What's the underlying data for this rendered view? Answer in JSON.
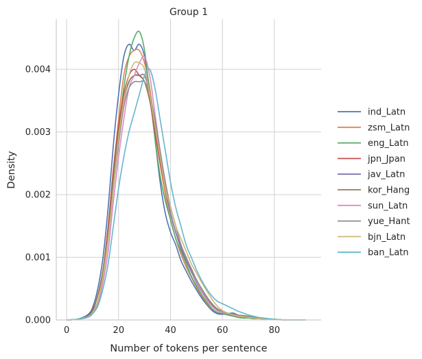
{
  "chart_data": {
    "type": "line",
    "title": "Group 1",
    "xlabel": "Number of tokens per sentence",
    "ylabel": "Density",
    "xlim": [
      -4,
      98
    ],
    "ylim": [
      0,
      0.0048
    ],
    "xticks": [
      0,
      20,
      40,
      60,
      80
    ],
    "yticks": [
      0.0,
      0.001,
      0.002,
      0.003,
      0.004
    ],
    "ytick_labels": [
      "0.000",
      "0.001",
      "0.002",
      "0.003",
      "0.004"
    ],
    "grid": true,
    "legend_position": "right",
    "x": [
      0,
      4,
      8,
      10,
      12,
      14,
      16,
      18,
      20,
      22,
      24,
      26,
      28,
      30,
      32,
      34,
      36,
      38,
      40,
      42,
      44,
      46,
      48,
      50,
      52,
      54,
      56,
      58,
      60,
      62,
      64,
      66,
      68,
      70,
      72,
      74,
      76,
      78,
      80,
      84,
      88,
      92
    ],
    "series": [
      {
        "name": "ind_Latn",
        "color": "#4c72b0",
        "values": [
          0,
          1e-05,
          8e-05,
          0.0002,
          0.0005,
          0.001,
          0.0018,
          0.0028,
          0.0036,
          0.0042,
          0.0044,
          0.0043,
          0.0044,
          0.0042,
          0.0036,
          0.0029,
          0.0022,
          0.0017,
          0.0014,
          0.0012,
          0.00095,
          0.00078,
          0.00062,
          0.00048,
          0.00035,
          0.00024,
          0.00015,
          0.0001,
          9e-05,
          0.0001,
          0.00011,
          8e-05,
          5e-05,
          4e-05,
          4e-05,
          3e-05,
          2e-05,
          1e-05,
          1e-05,
          0,
          0,
          0
        ]
      },
      {
        "name": "zsm_Latn",
        "color": "#dd8452",
        "values": [
          0,
          1e-05,
          6e-05,
          0.00015,
          0.0004,
          0.0008,
          0.0015,
          0.0024,
          0.0032,
          0.0039,
          0.0042,
          0.0043,
          0.0043,
          0.0041,
          0.0037,
          0.0031,
          0.0025,
          0.002,
          0.0016,
          0.0013,
          0.00105,
          0.00085,
          0.00068,
          0.00052,
          0.00038,
          0.00026,
          0.00017,
          0.00012,
          0.0001,
          9e-05,
          8e-05,
          6e-05,
          5e-05,
          4e-05,
          3e-05,
          2e-05,
          2e-05,
          1e-05,
          1e-05,
          0,
          0,
          0
        ]
      },
      {
        "name": "eng_Latn",
        "color": "#55a868",
        "values": [
          0,
          1e-05,
          5e-05,
          0.00013,
          0.0003,
          0.0007,
          0.0013,
          0.0022,
          0.003,
          0.0037,
          0.0042,
          0.0045,
          0.0046,
          0.0043,
          0.0036,
          0.0029,
          0.0023,
          0.0019,
          0.0016,
          0.0013,
          0.0011,
          0.0009,
          0.0007,
          0.00055,
          0.0004,
          0.00028,
          0.00018,
          0.00012,
          0.0001,
          8e-05,
          6e-05,
          4e-05,
          3e-05,
          3e-05,
          2e-05,
          2e-05,
          1e-05,
          1e-05,
          1e-05,
          0,
          0,
          0
        ]
      },
      {
        "name": "jpn_Jpan",
        "color": "#c44e52",
        "values": [
          0,
          1e-05,
          6e-05,
          0.00016,
          0.0004,
          0.0008,
          0.0015,
          0.0024,
          0.0031,
          0.0036,
          0.0039,
          0.004,
          0.0039,
          0.0038,
          0.0035,
          0.003,
          0.0025,
          0.0021,
          0.0017,
          0.0014,
          0.00115,
          0.00095,
          0.00077,
          0.0006,
          0.00045,
          0.00032,
          0.00022,
          0.00015,
          0.00012,
          0.0001,
          8e-05,
          6e-05,
          5e-05,
          4e-05,
          4e-05,
          3e-05,
          2e-05,
          1e-05,
          1e-05,
          0,
          0,
          0
        ]
      },
      {
        "name": "jav_Latn",
        "color": "#8172b3",
        "values": [
          0,
          1e-05,
          5e-05,
          0.00013,
          0.0003,
          0.0007,
          0.0013,
          0.0021,
          0.0029,
          0.0035,
          0.0038,
          0.0039,
          0.0039,
          0.0039,
          0.0036,
          0.0031,
          0.0026,
          0.0021,
          0.0017,
          0.0014,
          0.00115,
          0.00095,
          0.00077,
          0.0006,
          0.00045,
          0.00032,
          0.00022,
          0.00015,
          0.00012,
          0.0001,
          8e-05,
          7e-05,
          6e-05,
          5e-05,
          4e-05,
          3e-05,
          2e-05,
          1e-05,
          1e-05,
          0,
          0,
          0
        ]
      },
      {
        "name": "kor_Hang",
        "color": "#937860",
        "values": [
          0,
          1e-05,
          6e-05,
          0.00015,
          0.0004,
          0.0008,
          0.0014,
          0.0023,
          0.003,
          0.0035,
          0.0038,
          0.0039,
          0.0039,
          0.0038,
          0.0035,
          0.0031,
          0.0026,
          0.0021,
          0.0018,
          0.0015,
          0.0012,
          0.001,
          0.00082,
          0.00064,
          0.00048,
          0.00035,
          0.00024,
          0.00016,
          0.00012,
          0.0001,
          9e-05,
          8e-05,
          7e-05,
          6e-05,
          4e-05,
          3e-05,
          2e-05,
          1e-05,
          1e-05,
          0,
          0,
          0
        ]
      },
      {
        "name": "sun_Latn",
        "color": "#da8bc3",
        "values": [
          0,
          1e-05,
          4e-05,
          0.0001,
          0.00025,
          0.0006,
          0.0011,
          0.0019,
          0.0026,
          0.0032,
          0.0037,
          0.0039,
          0.0041,
          0.0042,
          0.0039,
          0.0033,
          0.0027,
          0.0022,
          0.0018,
          0.0015,
          0.0012,
          0.001,
          0.0008,
          0.00062,
          0.00046,
          0.00033,
          0.00022,
          0.00015,
          0.00012,
          0.0001,
          9e-05,
          8e-05,
          6e-05,
          5e-05,
          4e-05,
          3e-05,
          2e-05,
          1e-05,
          1e-05,
          0,
          0,
          0
        ]
      },
      {
        "name": "yue_Hant",
        "color": "#8c8c8c",
        "values": [
          0,
          1e-05,
          5e-05,
          0.00012,
          0.0003,
          0.0007,
          0.0013,
          0.0021,
          0.0028,
          0.0034,
          0.0037,
          0.0038,
          0.0038,
          0.0038,
          0.0036,
          0.0032,
          0.0027,
          0.0022,
          0.0018,
          0.0015,
          0.0012,
          0.001,
          0.0008,
          0.00064,
          0.0005,
          0.00037,
          0.00026,
          0.00018,
          0.00014,
          0.00011,
          9e-05,
          7e-05,
          6e-05,
          5e-05,
          4e-05,
          3e-05,
          2e-05,
          1e-05,
          1e-05,
          0,
          0,
          0
        ]
      },
      {
        "name": "bjn_Latn",
        "color": "#ccb974",
        "values": [
          0,
          1e-05,
          5e-05,
          0.00012,
          0.0003,
          0.0007,
          0.0013,
          0.0021,
          0.0029,
          0.0035,
          0.0039,
          0.0041,
          0.0041,
          0.004,
          0.0036,
          0.0031,
          0.0026,
          0.0021,
          0.0018,
          0.0015,
          0.0013,
          0.0011,
          0.0009,
          0.00075,
          0.0006,
          0.00046,
          0.00033,
          0.00022,
          0.00015,
          0.00011,
          8e-05,
          6e-05,
          5e-05,
          4e-05,
          3e-05,
          2e-05,
          2e-05,
          1e-05,
          1e-05,
          0,
          0,
          0
        ]
      },
      {
        "name": "ban_Latn",
        "color": "#64b5cd",
        "values": [
          0,
          1e-05,
          4e-05,
          0.0001,
          0.00022,
          0.0005,
          0.0009,
          0.0015,
          0.0021,
          0.0026,
          0.003,
          0.0033,
          0.0036,
          0.0039,
          0.004,
          0.0037,
          0.0032,
          0.0027,
          0.0022,
          0.0018,
          0.0015,
          0.0012,
          0.001,
          0.0008,
          0.00063,
          0.00049,
          0.00038,
          0.0003,
          0.00026,
          0.00022,
          0.00018,
          0.00014,
          0.00011,
          8e-05,
          6e-05,
          4e-05,
          3e-05,
          2e-05,
          1e-05,
          0,
          0,
          0
        ]
      }
    ]
  }
}
